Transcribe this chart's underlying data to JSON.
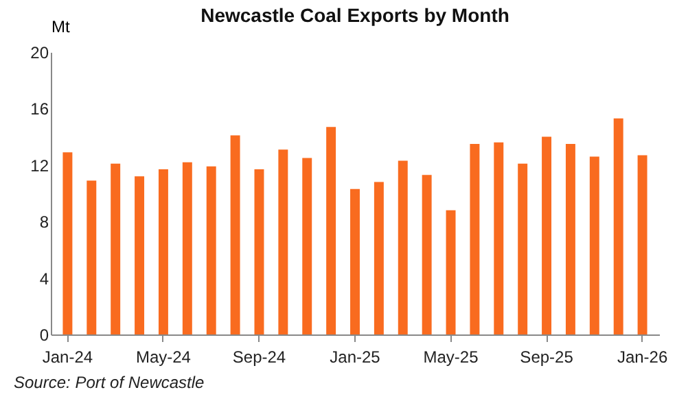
{
  "chart_data": {
    "type": "bar",
    "title": "Newcastle Coal Exports by Month",
    "ylabel": "Mt",
    "categories": [
      "Jan-24",
      null,
      null,
      null,
      "May-24",
      null,
      null,
      null,
      "Sep-24",
      null,
      null,
      null,
      "Jan-25",
      null,
      null,
      null,
      "May-25",
      null,
      null,
      null,
      "Sep-25",
      null,
      null,
      null,
      "Jan-26"
    ],
    "values": [
      12.9,
      10.9,
      12.1,
      11.2,
      11.7,
      12.2,
      11.9,
      14.1,
      11.7,
      13.1,
      12.5,
      14.7,
      10.3,
      10.8,
      12.3,
      11.3,
      8.8,
      13.5,
      13.6,
      12.1,
      14.0,
      13.5,
      12.6,
      15.3,
      12.7
    ],
    "color": "#f96b1f",
    "ylim": [
      0,
      20
    ],
    "yticks": [
      0,
      4,
      8,
      12,
      16,
      20
    ],
    "grid": false,
    "annotations": [
      "Source: Port of Newcastle"
    ]
  }
}
